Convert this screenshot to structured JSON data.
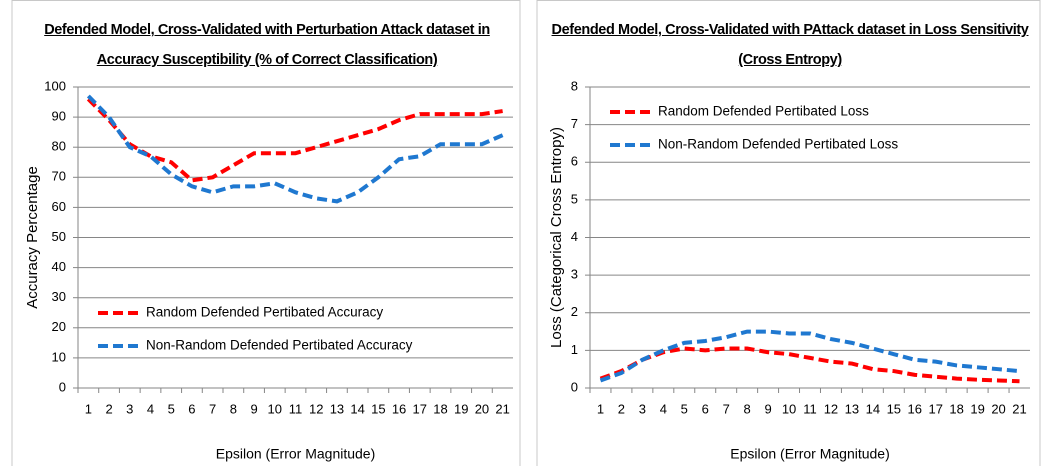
{
  "chart_data": [
    {
      "type": "line",
      "title": "Defended Model, Cross-Validated with Perturbation Attack dataset in Accuracy Susceptibility (% of Correct Classification)",
      "x_label": "Epsilon (Error Magnitude)",
      "y_label": "Accuracy Percentage",
      "categories": [
        1,
        2,
        3,
        4,
        5,
        6,
        7,
        8,
        9,
        10,
        11,
        12,
        13,
        14,
        15,
        16,
        17,
        18,
        19,
        20,
        21
      ],
      "series": [
        {
          "name": "Random Defended Pertibated Accuracy",
          "color": "#ff0000",
          "values": [
            96,
            89,
            81,
            77,
            75,
            69,
            70,
            74,
            78,
            78,
            78,
            80,
            82,
            84,
            86,
            89,
            91,
            91,
            91,
            91,
            92
          ]
        },
        {
          "name": "Non-Random Defended Pertibated Accuracy",
          "color": "#1f78d0",
          "values": [
            97,
            90,
            80,
            77,
            71,
            67,
            65,
            67,
            67,
            68,
            65,
            63,
            62,
            65,
            70,
            76,
            77,
            81,
            81,
            81,
            84
          ]
        }
      ],
      "ylim": [
        0,
        100
      ],
      "yticks": [
        0,
        10,
        20,
        30,
        40,
        50,
        60,
        70,
        80,
        90,
        100
      ],
      "grid": true,
      "legend": "lower left"
    },
    {
      "type": "line",
      "title": "Defended Model, Cross-Validated with PAttack dataset in Loss Sensitivity (Cross Entropy)",
      "x_label": "Epsilon (Error Magnitude)",
      "y_label": "Loss (Categorical Cross Entropy)",
      "categories": [
        1,
        2,
        3,
        4,
        5,
        6,
        7,
        8,
        9,
        10,
        11,
        12,
        13,
        14,
        15,
        16,
        17,
        18,
        19,
        20,
        21
      ],
      "series": [
        {
          "name": "Random Defended Pertibated Loss",
          "color": "#ff0000",
          "values": [
            0.25,
            0.45,
            0.75,
            0.95,
            1.05,
            1.0,
            1.05,
            1.05,
            0.95,
            0.9,
            0.8,
            0.7,
            0.65,
            0.5,
            0.45,
            0.35,
            0.3,
            0.25,
            0.22,
            0.2,
            0.18
          ]
        },
        {
          "name": "Non-Random Defended Pertibated Loss",
          "color": "#1f78d0",
          "values": [
            0.2,
            0.4,
            0.75,
            1.0,
            1.2,
            1.25,
            1.35,
            1.5,
            1.5,
            1.45,
            1.45,
            1.3,
            1.2,
            1.05,
            0.9,
            0.75,
            0.7,
            0.6,
            0.55,
            0.5,
            0.45
          ]
        }
      ],
      "ylim": [
        0,
        8
      ],
      "yticks": [
        0,
        1,
        2,
        3,
        4,
        5,
        6,
        7,
        8
      ],
      "grid": true,
      "legend": "upper left"
    }
  ]
}
